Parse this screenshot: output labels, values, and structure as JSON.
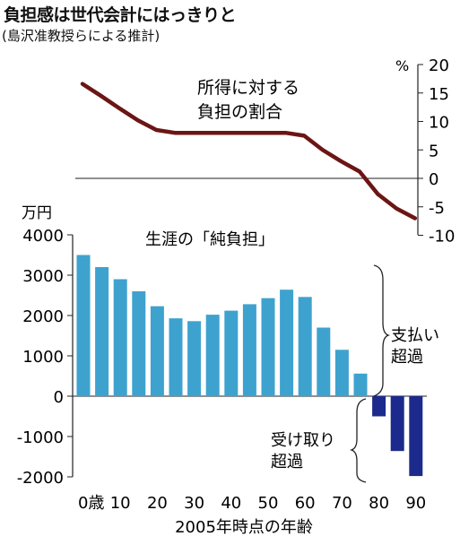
{
  "header": {
    "title": "負担感は世代会計にはっきりと",
    "subtitle": "(島沢准教授らによる推計)"
  },
  "chart_data": [
    {
      "type": "line",
      "title": "所得に対する負担の割合",
      "ylabel": "%",
      "x": [
        0,
        5,
        10,
        15,
        20,
        25,
        30,
        35,
        40,
        45,
        50,
        55,
        60,
        65,
        70,
        75,
        80,
        85,
        90
      ],
      "values": [
        16.6,
        14.5,
        12.3,
        10.2,
        8.5,
        8.0,
        8.0,
        8.0,
        8.0,
        8.0,
        8.0,
        8.0,
        7.5,
        5.0,
        3.0,
        1.2,
        -2.8,
        -5.3,
        -7.0
      ],
      "ylim": [
        -10,
        20
      ],
      "yticks": [
        "20",
        "15",
        "10",
        "5",
        "0",
        "-5",
        "-10"
      ],
      "color": "#6b1515"
    },
    {
      "type": "bar",
      "title": "生涯の「純負担」",
      "ylabel": "万円",
      "xlabel": "2005年時点の年齢",
      "x": [
        0,
        5,
        10,
        15,
        20,
        25,
        30,
        35,
        40,
        45,
        50,
        55,
        60,
        65,
        70,
        75,
        80,
        85,
        90
      ],
      "values": [
        3500,
        3200,
        2900,
        2600,
        2230,
        1930,
        1860,
        2020,
        2120,
        2280,
        2430,
        2640,
        2460,
        1700,
        1150,
        560,
        -500,
        -1360,
        -1980
      ],
      "ylim": [
        -2000,
        4000
      ],
      "yticks": [
        "4000",
        "3000",
        "2000",
        "1000",
        "0",
        "-1000",
        "-2000"
      ],
      "xticks": [
        "0歳",
        "10",
        "20",
        "30",
        "40",
        "50",
        "60",
        "70",
        "80",
        "90"
      ],
      "colors": {
        "positive": "#3ea2cf",
        "negative": "#1b2a8c"
      },
      "annotations": {
        "payment_excess": [
          "支払い",
          "超過"
        ],
        "receipt_excess": [
          "受け取り",
          "超過"
        ]
      }
    }
  ]
}
